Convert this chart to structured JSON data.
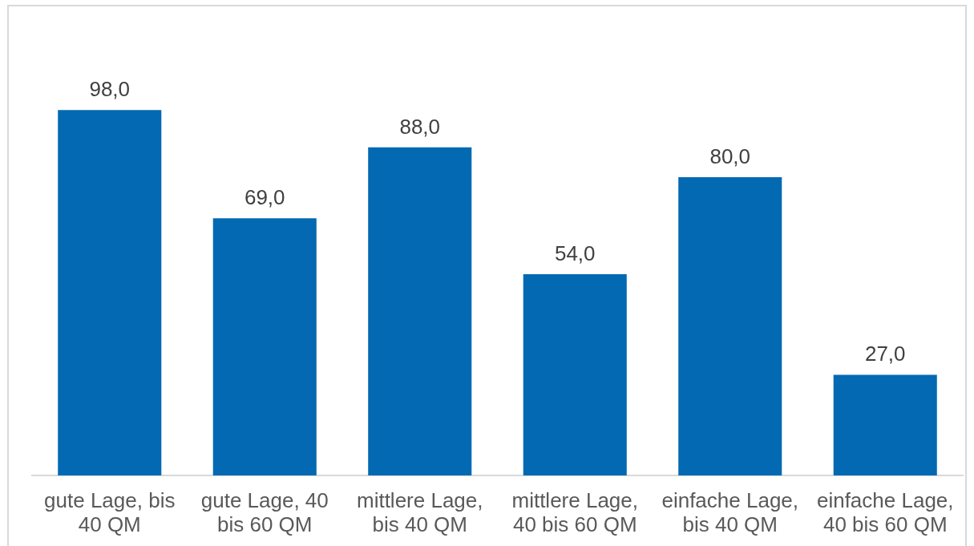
{
  "chart_data": {
    "type": "bar",
    "categories": [
      "gute Lage, bis 40 QM",
      "gute Lage, 40 bis 60 QM",
      "mittlere Lage, bis 40 QM",
      "mittlere Lage, 40 bis 60 QM",
      "einfache Lage, bis 40 QM",
      "einfache Lage, 40 bis 60 QM"
    ],
    "values": [
      98,
      69,
      88,
      54,
      80,
      27
    ],
    "color": "#0369b2",
    "value_labels": [
      "98,0",
      "69,0",
      "88,0",
      "54,0",
      "80,0",
      "27,0"
    ]
  }
}
